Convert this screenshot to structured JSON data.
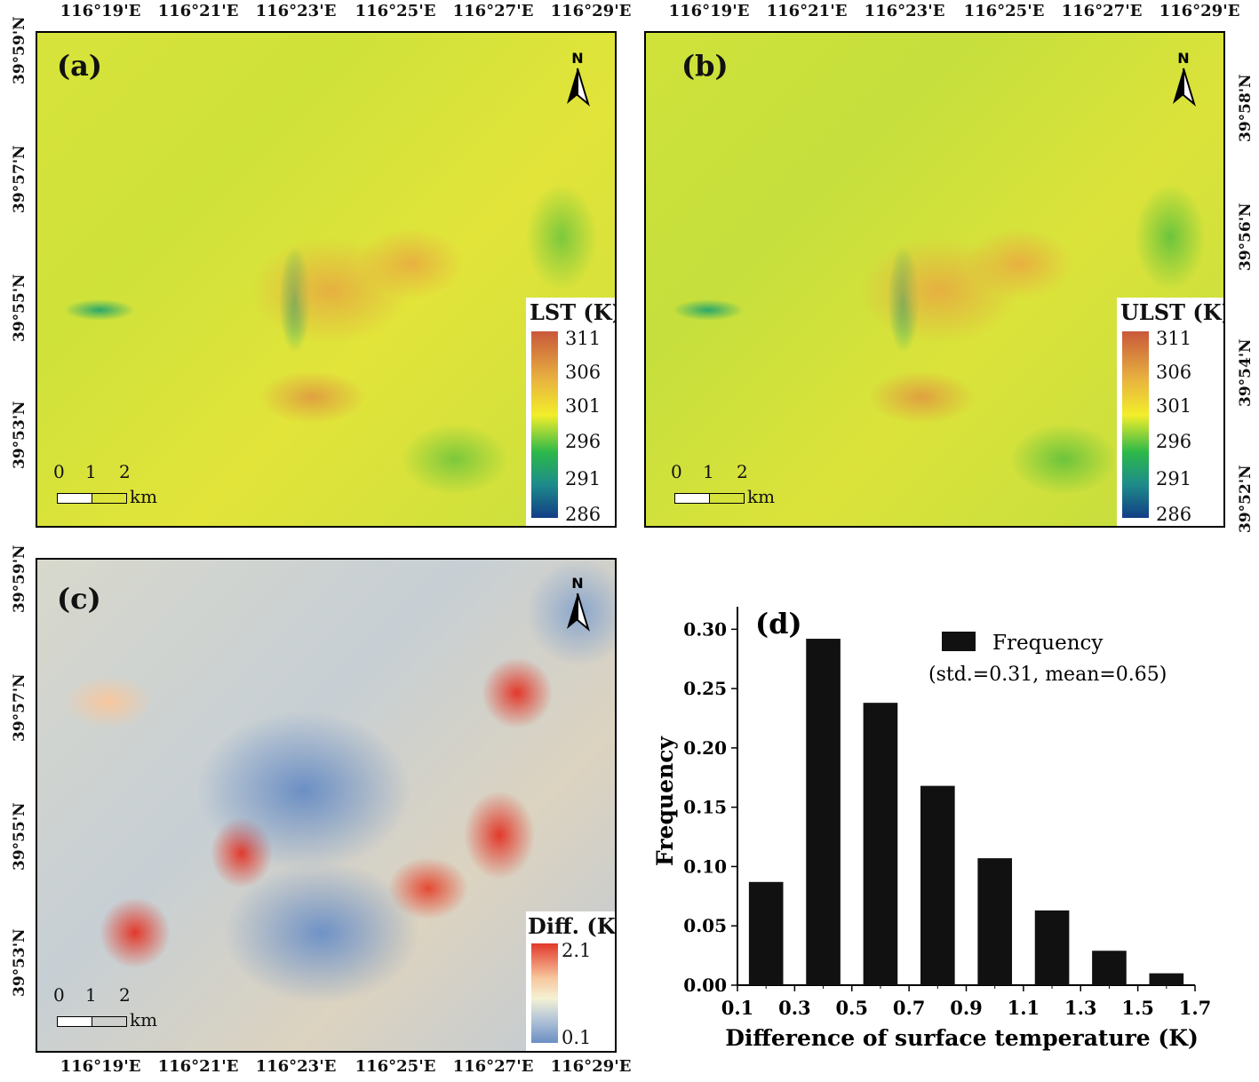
{
  "axes": {
    "lon_ticks": [
      "116°19'E",
      "116°21'E",
      "116°23'E",
      "116°25'E",
      "116°27'E",
      "116°29'E"
    ],
    "lat_ticks_left_a": [
      "39°59'N",
      "39°57'N",
      "39°55'N",
      "39°53'N"
    ],
    "lat_ticks_right_b": [
      "39°58'N",
      "39°56'N",
      "39°54'N",
      "39°52'N"
    ],
    "lat_ticks_left_c": [
      "39°59'N",
      "39°57'N",
      "39°55'N",
      "39°53'N"
    ]
  },
  "panels": {
    "a": {
      "label": "(a)",
      "north": "N",
      "legend_title": "LST (K)",
      "legend_ticks": [
        "311",
        "306",
        "301",
        "296",
        "291",
        "286"
      ],
      "scale_labels": [
        "0",
        "1",
        "2"
      ],
      "scale_unit": "km"
    },
    "b": {
      "label": "(b)",
      "north": "N",
      "legend_title": "ULST (K)",
      "legend_ticks": [
        "311",
        "306",
        "301",
        "296",
        "291",
        "286"
      ],
      "scale_labels": [
        "0",
        "1",
        "2"
      ],
      "scale_unit": "km"
    },
    "c": {
      "label": "(c)",
      "north": "N",
      "legend_title": "Diff. (K)",
      "legend_ticks": [
        "2.1",
        "0.1"
      ],
      "scale_labels": [
        "0",
        "1",
        "2"
      ],
      "scale_unit": "km"
    }
  },
  "colors": {
    "lst_ramp": [
      "#c8583a",
      "#e8b040",
      "#f2ee2a",
      "#2bb84a",
      "#1e8c8a",
      "#123e86"
    ],
    "diff_ramp": [
      "#e2392b",
      "#f7c79e",
      "#f5f1d4",
      "#b8c8d8",
      "#6b8fc4"
    ],
    "bar_fill": "#111111"
  },
  "chart_data": {
    "type": "bar",
    "panel_label": "(d)",
    "legend": [
      "Frequency",
      "(std.=0.31, mean=0.65)"
    ],
    "xlabel": "Difference of surface temperature (K)",
    "ylabel": "Frequency",
    "x_ticks": [
      "0.1",
      "0.3",
      "0.5",
      "0.7",
      "0.9",
      "1.1",
      "1.3",
      "1.5",
      "1.7"
    ],
    "y_ticks": [
      "0.00",
      "0.05",
      "0.10",
      "0.15",
      "0.20",
      "0.25",
      "0.30"
    ],
    "xlim": [
      0.1,
      1.7
    ],
    "ylim": [
      0,
      0.31
    ],
    "bin_edges": [
      0.15,
      0.35,
      0.55,
      0.75,
      0.95,
      1.15,
      1.35,
      1.55
    ],
    "bin_width": 0.12,
    "centers": [
      0.2,
      0.4,
      0.6,
      0.8,
      1.0,
      1.2,
      1.4,
      1.6
    ],
    "values": [
      0.087,
      0.292,
      0.238,
      0.168,
      0.107,
      0.063,
      0.029,
      0.01
    ]
  }
}
